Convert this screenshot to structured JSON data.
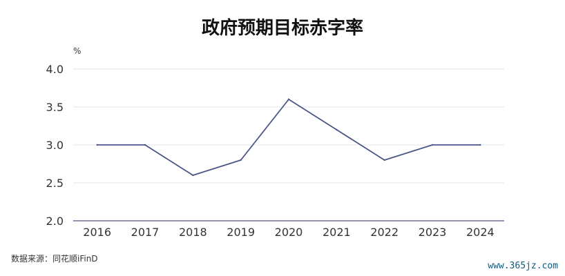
{
  "chart_data": {
    "type": "line",
    "title": "政府预期目标赤字率",
    "unit_label": "%",
    "x": [
      "2016",
      "2017",
      "2018",
      "2019",
      "2020",
      "2021",
      "2022",
      "2023",
      "2024"
    ],
    "series": [
      {
        "values": [
          3.0,
          3.0,
          2.6,
          2.8,
          3.6,
          3.2,
          2.8,
          3.0,
          3.0
        ]
      }
    ],
    "yticks": [
      "2.0",
      "2.5",
      "3.0",
      "3.5",
      "4.0"
    ],
    "ylim": [
      2.0,
      4.0
    ],
    "grid": true,
    "line_color": "#4a5687",
    "grid_color": "#e6e6e6",
    "axis_color": "#4a5687",
    "source": "数据来源：同花顺iFinD"
  },
  "watermark": "www.365jz.com"
}
